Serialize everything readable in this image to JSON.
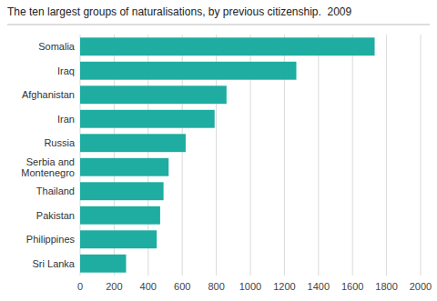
{
  "chart_data": {
    "type": "bar",
    "orientation": "horizontal",
    "title": "The ten largest groups of naturalisations, by previous citizenship.  2009",
    "categories": [
      "Sri Lanka",
      "Philippines",
      "Pakistan",
      "Thailand",
      "Serbia and\nMontenegro",
      "Russia",
      "Iran",
      "Afghanistan",
      "Iraq",
      "Somalia"
    ],
    "values": [
      270,
      450,
      470,
      490,
      520,
      620,
      790,
      860,
      1270,
      1730
    ],
    "color": "#1eada0",
    "xlim": [
      0,
      2000
    ],
    "xticks": [
      0,
      200,
      400,
      600,
      800,
      1000,
      1200,
      1400,
      1600,
      1800,
      2000
    ],
    "grid": true
  }
}
